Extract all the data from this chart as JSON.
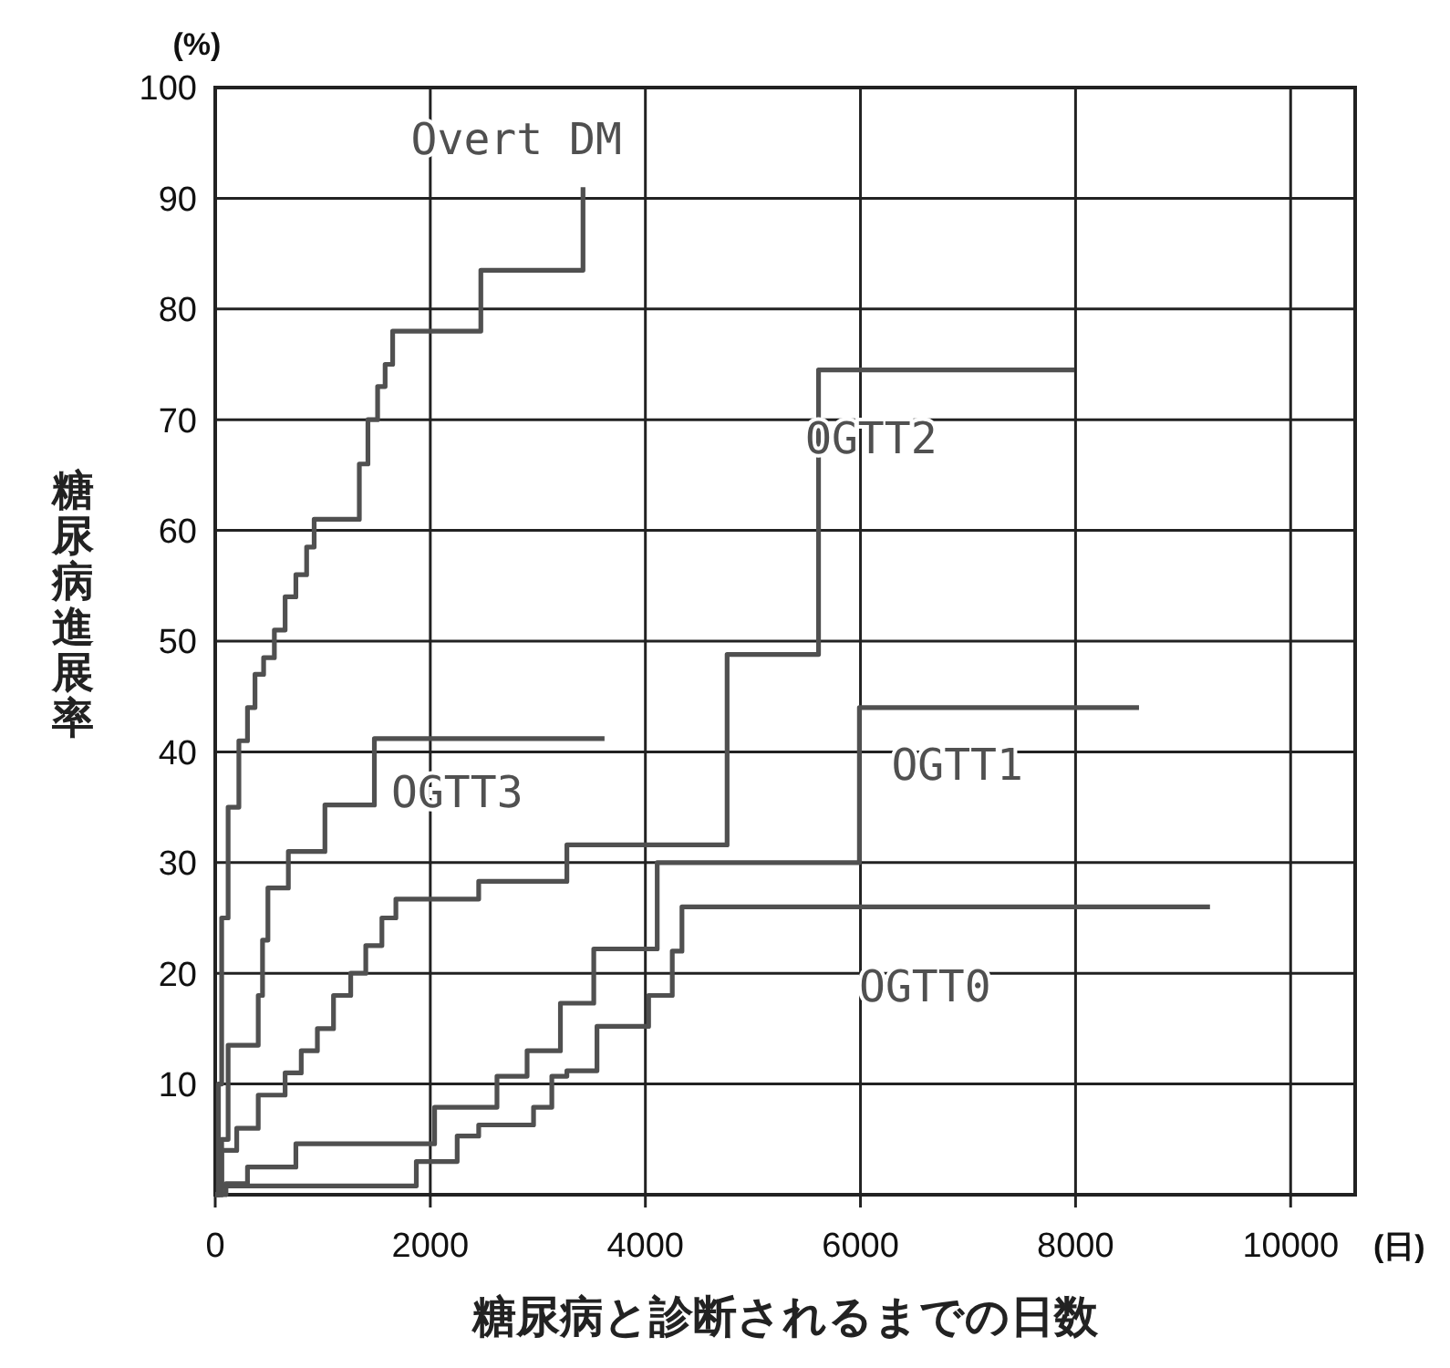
{
  "chart_data": {
    "type": "step",
    "xlabel": "糖尿病と診断されるまでの日数",
    "ylabel": "糖尿病進展率",
    "annotations": [
      "(%)",
      "(日)"
    ],
    "xlim": [
      0,
      10600
    ],
    "xticks": [
      0,
      2000,
      4000,
      6000,
      8000,
      10000
    ],
    "ylim": [
      0,
      100
    ],
    "yticks": [
      10,
      20,
      30,
      40,
      50,
      60,
      70,
      80,
      90,
      100
    ],
    "grid": true,
    "series": [
      {
        "name": "Overt DM",
        "color": "#505050",
        "x": [
          0,
          30,
          60,
          120,
          220,
          300,
          370,
          450,
          550,
          650,
          750,
          850,
          920,
          1340,
          1420,
          1510,
          1580,
          1650,
          1720,
          2470,
          3420
        ],
        "values": [
          0,
          10,
          25,
          35,
          41,
          44,
          47,
          48.5,
          51,
          54,
          56,
          58.5,
          61,
          66,
          70,
          73,
          75,
          78,
          78,
          83.5,
          91
        ]
      },
      {
        "name": "OGTT3",
        "color": "#505050",
        "x": [
          0,
          60,
          120,
          400,
          440,
          490,
          680,
          1020,
          1480,
          3620
        ],
        "values": [
          0,
          5,
          13.5,
          18,
          23,
          27.7,
          31,
          35.2,
          41.2,
          41.2
        ]
      },
      {
        "name": "OGTT2",
        "color": "#505050",
        "x": [
          0,
          60,
          200,
          400,
          650,
          800,
          950,
          1100,
          1260,
          1400,
          1550,
          1680,
          2450,
          3270,
          4760,
          5610,
          7990
        ],
        "values": [
          0,
          4,
          6,
          9,
          11,
          13,
          15,
          18,
          20,
          22.5,
          25,
          26.7,
          28.3,
          31.6,
          48.8,
          74.5,
          74.5
        ]
      },
      {
        "name": "OGTT1",
        "color": "#505050",
        "x": [
          0,
          100,
          300,
          750,
          2040,
          2620,
          2900,
          3210,
          3520,
          4110,
          5990,
          8590
        ],
        "values": [
          0,
          1,
          2.5,
          4.6,
          7.9,
          10.7,
          13,
          17.3,
          22.2,
          30,
          44,
          44
        ]
      },
      {
        "name": "OGTT0",
        "color": "#505050",
        "x": [
          0,
          30,
          1870,
          2250,
          2450,
          2960,
          3130,
          3270,
          3550,
          4030,
          4250,
          4340,
          9250
        ],
        "values": [
          0,
          0.8,
          3,
          5.3,
          6.3,
          7.9,
          10.7,
          11.2,
          15.2,
          18,
          22,
          26,
          26
        ]
      }
    ]
  }
}
